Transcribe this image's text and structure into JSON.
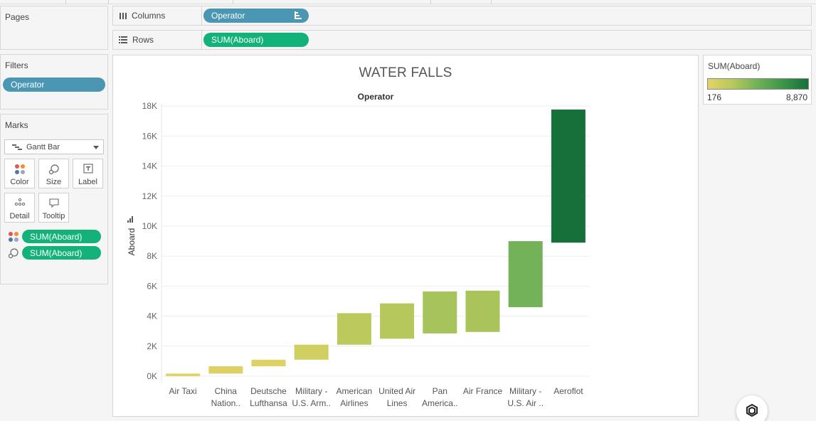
{
  "pages": {
    "title": "Pages"
  },
  "columns": {
    "label": "Columns",
    "pill": "Operator",
    "icon": "columns-icon"
  },
  "rows": {
    "label": "Rows",
    "pill": "SUM(Aboard)",
    "icon": "rows-icon"
  },
  "filters": {
    "title": "Filters",
    "pill": "Operator"
  },
  "marks": {
    "title": "Marks",
    "mark_type": "Gantt Bar",
    "buttons": [
      "Color",
      "Size",
      "Label",
      "Detail",
      "Tooltip"
    ],
    "encodings": [
      {
        "icon": "color-icon",
        "pill": "SUM(Aboard)"
      },
      {
        "icon": "size-icon",
        "pill": "SUM(Aboard)"
      }
    ]
  },
  "legend": {
    "title": "SUM(Aboard)",
    "min": "176",
    "max": "8,870"
  },
  "colors": {
    "blue_pill": "#4a96b3",
    "green_pill": "#12b27a",
    "legend_low": "#e3d365",
    "legend_high": "#16703a"
  },
  "chart_data": {
    "type": "bar",
    "subtype": "waterfall (gantt bar)",
    "title": "WATER FALLS",
    "x_header": "Operator",
    "ylabel": "Aboard",
    "ylim": [
      -200,
      18600
    ],
    "yticks": [
      0,
      2000,
      4000,
      6000,
      8000,
      10000,
      12000,
      14000,
      16000,
      18000
    ],
    "ytick_labels": [
      "0K",
      "2K",
      "4K",
      "6K",
      "8K",
      "10K",
      "12K",
      "14K",
      "16K",
      "18K"
    ],
    "categories": [
      [
        "Air Taxi"
      ],
      [
        "China",
        "Nation.."
      ],
      [
        "Deutsche",
        "Lufthansa"
      ],
      [
        "Military -",
        "U.S. Arm.."
      ],
      [
        "American",
        "Airlines"
      ],
      [
        "United Air",
        "Lines"
      ],
      [
        "Pan",
        "America.."
      ],
      [
        "Air France"
      ],
      [
        "Military -",
        "U.S. Air .."
      ],
      [
        "Aeroflot"
      ]
    ],
    "series": [
      {
        "name": "SUM(Aboard)",
        "start": [
          0,
          176,
          660,
          1100,
          2100,
          2500,
          2850,
          2950,
          4600,
          8900
        ],
        "values": [
          176,
          484,
          440,
          1000,
          2100,
          2350,
          2800,
          2750,
          4400,
          8870
        ]
      }
    ],
    "color_legend": {
      "field": "SUM(Aboard)",
      "min": 176,
      "max": 8870
    },
    "grid": true,
    "legend_position": "right"
  }
}
